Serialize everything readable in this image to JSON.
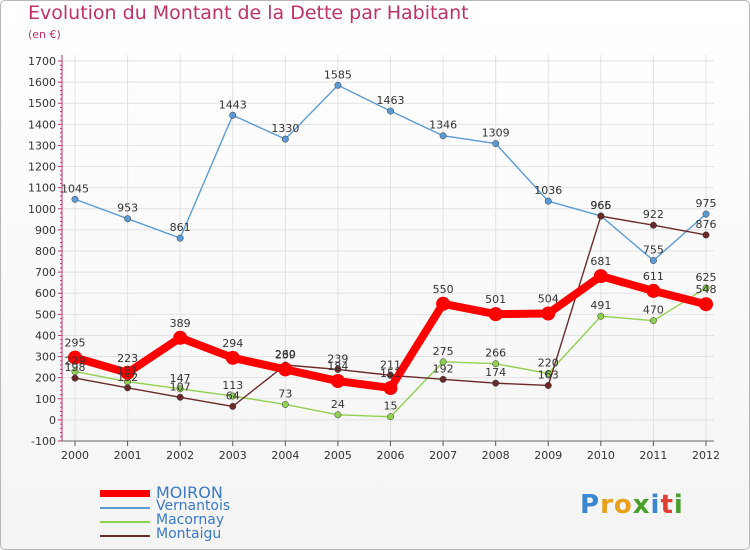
{
  "chart_data": {
    "type": "line",
    "title": "Evolution du Montant de la Dette par Habitant",
    "subtitle": "(en €)",
    "xlabel": "",
    "ylabel": "",
    "ylim": [
      -100,
      1700
    ],
    "yticks": [
      -100,
      0,
      100,
      200,
      300,
      400,
      500,
      600,
      700,
      800,
      900,
      1000,
      1100,
      1200,
      1300,
      1400,
      1500,
      1600,
      1700
    ],
    "categories": [
      "2000",
      "2001",
      "2002",
      "2003",
      "2004",
      "2005",
      "2006",
      "2007",
      "2008",
      "2009",
      "2010",
      "2011",
      "2012"
    ],
    "series": [
      {
        "name": "Vernantois",
        "color": "#5b9bd5",
        "values": [
          1045,
          953,
          861,
          1443,
          1330,
          1585,
          1463,
          1346,
          1309,
          1036,
          966,
          755,
          975
        ]
      },
      {
        "name": "Macornay",
        "color": "#92d050",
        "values": [
          229,
          181,
          147,
          113,
          73,
          24,
          15,
          275,
          266,
          220,
          491,
          470,
          625
        ]
      },
      {
        "name": "Montaigu",
        "color": "#6b2a2a",
        "values": [
          198,
          152,
          107,
          64,
          260,
          239,
          211,
          192,
          174,
          163,
          965,
          922,
          876
        ]
      },
      {
        "name": "MOIRON",
        "color": "#ff0000",
        "values": [
          295,
          223,
          389,
          294,
          239,
          184,
          151,
          550,
          501,
          504,
          681,
          611,
          548
        ]
      }
    ],
    "legend_order": [
      "MOIRON",
      "Vernantois",
      "Macornay",
      "Montaigu"
    ]
  },
  "brand": {
    "letters": [
      "P",
      "r",
      "o",
      "x",
      "i",
      "t",
      "i"
    ]
  }
}
